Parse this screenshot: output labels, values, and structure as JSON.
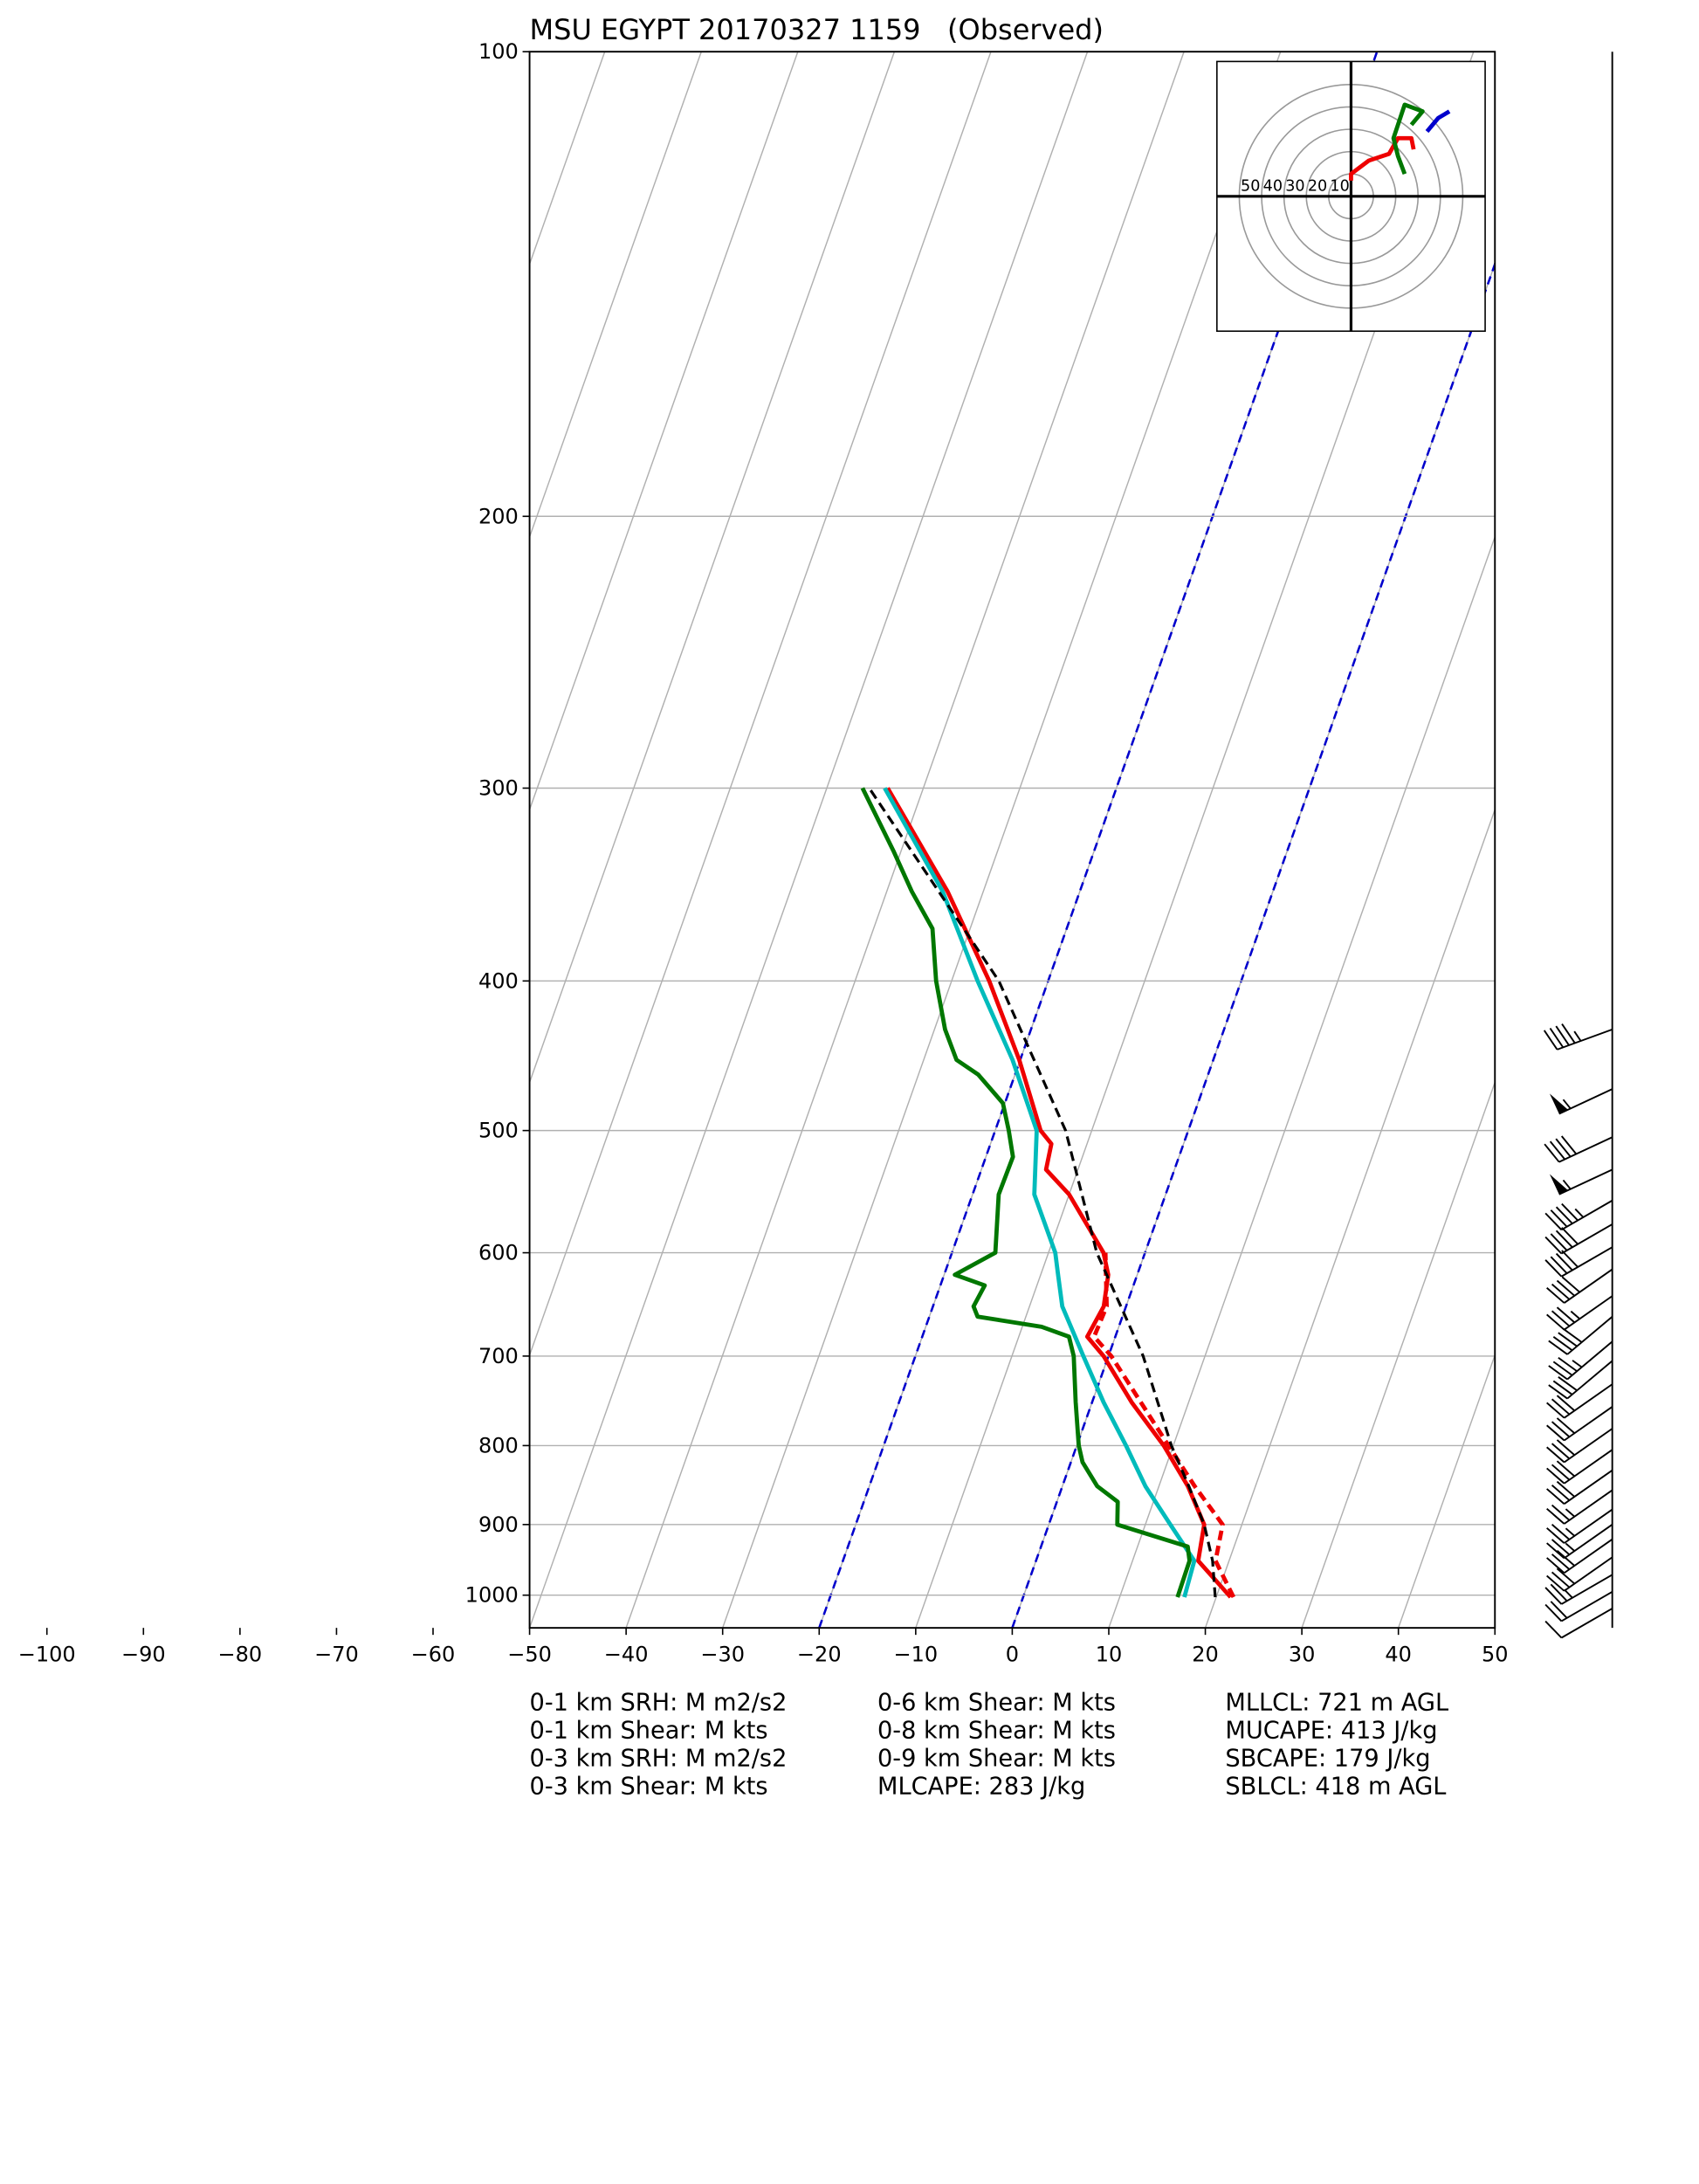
{
  "chart_data": {
    "type": "skewt",
    "title": "MSU EGYPT 20170327 1159   (Observed)",
    "xlim": [
      -50,
      50
    ],
    "xticks": [
      {
        "value": -100,
        "label": "−100"
      },
      {
        "value": -90,
        "label": "−90"
      },
      {
        "value": -80,
        "label": "−80"
      },
      {
        "value": -70,
        "label": "−70"
      },
      {
        "value": -60,
        "label": "−60"
      },
      {
        "value": -50,
        "label": "−50"
      },
      {
        "value": -40,
        "label": "−40"
      },
      {
        "value": -30,
        "label": "−30"
      },
      {
        "value": -20,
        "label": "−20"
      },
      {
        "value": -10,
        "label": "−10"
      },
      0,
      10,
      20,
      30,
      40,
      50
    ],
    "ylim": [
      1050,
      100
    ],
    "yticks": [
      100,
      200,
      300,
      400,
      500,
      600,
      700,
      800,
      900,
      1000
    ],
    "log_y": true,
    "grid": true,
    "highlight_isotherms": {
      "values": [
        -20,
        0
      ],
      "color": "#0000cc"
    },
    "series": [
      {
        "color": "#ee0000",
        "style": "solid",
        "pressure": [
          1003,
          950,
          900,
          850,
          800,
          750,
          700,
          680,
          650,
          620,
          600,
          550,
          530,
          510,
          500,
          450,
          400,
          350,
          300
        ],
        "values": [
          21.5,
          16.8,
          16.1,
          13.0,
          9.0,
          4.1,
          -0.5,
          -2.9,
          -2.3,
          -3.0,
          -4.3,
          -10.0,
          -13.3,
          -13.7,
          -15.3,
          -20.1,
          -26.1,
          -33.7,
          -43.7
        ]
      },
      {
        "color": "#ee0000",
        "style": "dashed",
        "pressure": [
          1003,
          950,
          900,
          850,
          800,
          700,
          680,
          650,
          600
        ],
        "values": [
          21.8,
          18.6,
          18.0,
          13.7,
          9.5,
          0.3,
          -2.2,
          -2.0,
          -4.1
        ]
      },
      {
        "color": "#00bbbb",
        "style": "solid",
        "pressure": [
          1003,
          950,
          900,
          850,
          800,
          750,
          700,
          650,
          620,
          600,
          550,
          500,
          450,
          400,
          350,
          300
        ],
        "values": [
          16.7,
          16.4,
          12.6,
          8.6,
          5.1,
          1.2,
          -2.6,
          -6.6,
          -8.2,
          -9.3,
          -13.6,
          -15.7,
          -20.8,
          -27.3,
          -34.2,
          -44.0
        ]
      },
      {
        "color": "#007700",
        "style": "solid",
        "pressure": [
          1003,
          950,
          930,
          900,
          870,
          850,
          820,
          800,
          750,
          700,
          680,
          670,
          660,
          650,
          630,
          620,
          600,
          550,
          520,
          500,
          480,
          460,
          450,
          430,
          400,
          370,
          350,
          330,
          300
        ],
        "values": [
          16.0,
          15.9,
          15.2,
          7.1,
          6.3,
          3.6,
          1.2,
          0.2,
          -1.7,
          -3.6,
          -4.8,
          -8.0,
          -15.0,
          -15.8,
          -15.4,
          -18.9,
          -15.5,
          -17.3,
          -17.2,
          -18.6,
          -20.2,
          -23.8,
          -26.6,
          -28.9,
          -31.6,
          -33.9,
          -37.4,
          -40.7,
          -46.3
        ]
      },
      {
        "color": "#000000",
        "style": "dashed",
        "pressure": [
          1003,
          950,
          900,
          850,
          800,
          700,
          600,
          500,
          400,
          300
        ],
        "values": [
          19.9,
          18.3,
          16.1,
          13.1,
          9.8,
          3.6,
          -5.0,
          -12.7,
          -25.1,
          -45.6
        ]
      }
    ],
    "wind": {
      "pressure": [
        430,
        470,
        505,
        530,
        555,
        575,
        595,
        615,
        640,
        660,
        685,
        705,
        730,
        755,
        780,
        805,
        830,
        855,
        880,
        900,
        920,
        945,
        970,
        995,
        1020
      ],
      "speed": [
        45,
        55,
        40,
        55,
        45,
        40,
        40,
        40,
        35,
        40,
        35,
        30,
        30,
        30,
        30,
        30,
        30,
        25,
        25,
        25,
        30,
        30,
        25,
        20,
        10
      ],
      "direction": [
        250,
        245,
        245,
        245,
        240,
        240,
        240,
        235,
        235,
        230,
        230,
        230,
        235,
        235,
        235,
        235,
        235,
        235,
        235,
        235,
        235,
        235,
        240,
        240,
        240
      ]
    },
    "hodograph": {
      "lim": 60,
      "rings": [
        50,
        40,
        30,
        20,
        10
      ],
      "series": [
        {
          "color": "#ee0000",
          "u": [
            0,
            0,
            8,
            17,
            21,
            27,
            28
          ],
          "v": [
            7,
            10,
            16,
            19,
            26,
            26,
            21
          ]
        },
        {
          "color": "#007700",
          "u": [
            24,
            21,
            19,
            22,
            24,
            32,
            27
          ],
          "v": [
            10,
            18,
            26,
            35,
            41,
            38,
            32
          ]
        },
        {
          "color": "#0000cc",
          "u": [
            34,
            39,
            44
          ],
          "v": [
            29,
            35,
            38
          ]
        }
      ]
    },
    "stats": [
      [
        "0-1 km SRH: M m2/s2",
        "0-1 km Shear: M kts",
        "0-3 km SRH: M m2/s2",
        "0-3 km Shear: M kts"
      ],
      [
        "0-6 km Shear: M kts",
        "0-8 km Shear: M kts",
        "0-9 km Shear: M kts",
        "MLCAPE: 283 J/kg"
      ],
      [
        "MLLCL: 721 m AGL",
        "MUCAPE: 413 J/kg",
        "SBCAPE: 179 J/kg",
        "SBLCL: 418 m AGL"
      ]
    ]
  }
}
